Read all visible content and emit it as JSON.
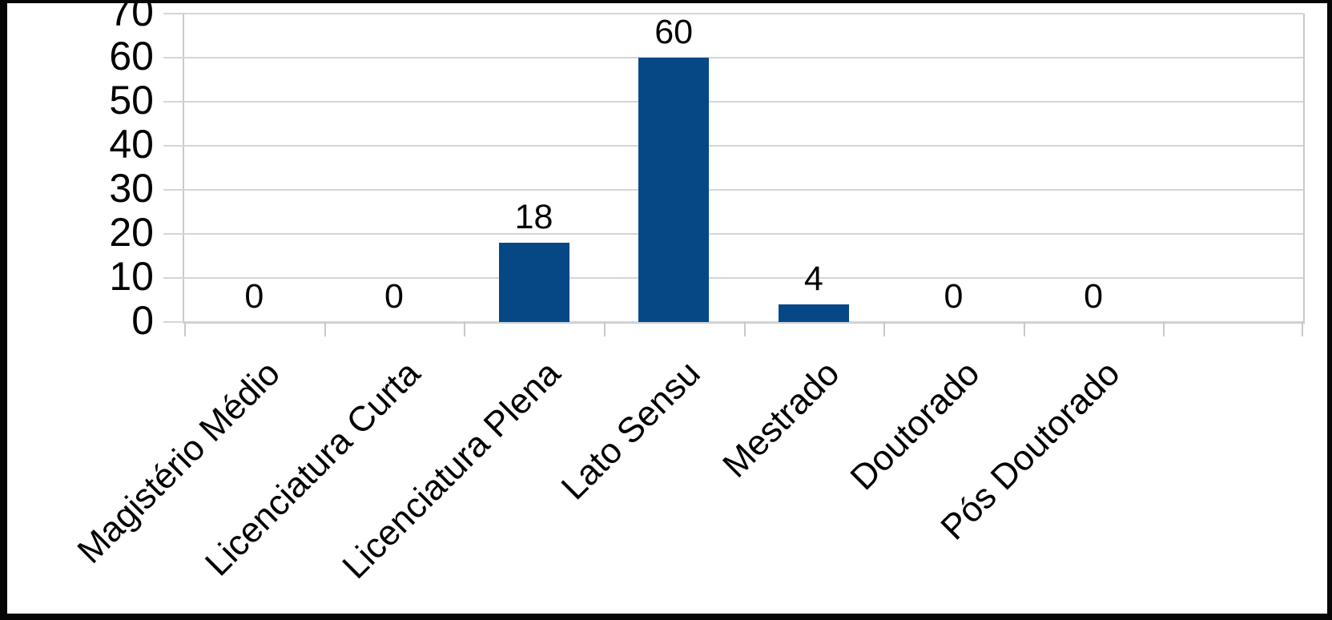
{
  "chart_data": {
    "type": "bar",
    "categories": [
      "Magistério Médio",
      "Licenciatura Curta",
      "Licenciatura Plena",
      "Lato Sensu",
      "Mestrado",
      "Doutorado",
      "Pós Doutorado"
    ],
    "values": [
      0,
      0,
      18,
      60,
      4,
      0,
      0
    ],
    "data_labels": [
      "0",
      "0",
      "18",
      "60",
      "4",
      "0",
      "0"
    ],
    "title": "",
    "xlabel": "",
    "ylabel": "",
    "ylim": [
      0,
      70
    ],
    "yticks": [
      0,
      10,
      20,
      30,
      40,
      50,
      60,
      70
    ],
    "grid": true,
    "legend": "none",
    "bar_color": "#064886",
    "grid_color": "#d3d6d9",
    "axis_color": "#c6cacd",
    "text_color": "#000000",
    "background_color": "#ffffff",
    "frame_color": "#070707",
    "category_label_rotation_deg": 45,
    "extra_empty_slots": 1
  }
}
